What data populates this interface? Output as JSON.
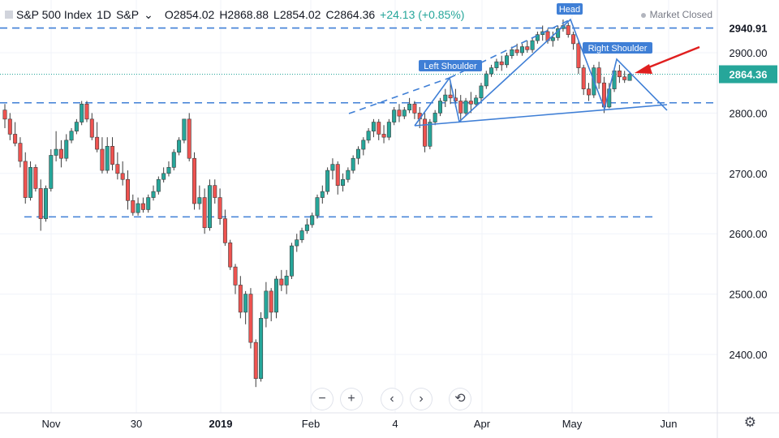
{
  "header": {
    "symbol": "S&P 500 Index",
    "interval": "1D",
    "exchange": "S&P",
    "open": "O2854.02",
    "high": "H2868.88",
    "low": "L2854.02",
    "close": "C2864.36",
    "change": "+24.13 (+0.85%)",
    "market_status": "Market Closed"
  },
  "colors": {
    "up": "#26a69a",
    "down": "#ef5350",
    "pattern": "#3f7fd6",
    "arrow": "#e01f1f"
  },
  "chart_data": {
    "type": "candlestick",
    "ylim": [
      2330,
      3000
    ],
    "y_ticks": [
      2400,
      2500,
      2600,
      2700,
      2800,
      2900
    ],
    "x_ticks": [
      "Nov",
      "30",
      "2019",
      "Feb",
      "4",
      "Apr",
      "May",
      "Jun"
    ],
    "last_price_label": "2864.36",
    "level_label": "2940.91",
    "levels": [
      2940.91,
      2817,
      2628
    ],
    "annotations": [
      "Left Shoulder",
      "Head",
      "Right Shoulder"
    ],
    "candles": [
      [
        2805,
        2815,
        2790,
        2775
      ],
      [
        2790,
        2800,
        2765,
        2755
      ],
      [
        2765,
        2785,
        2750,
        2745
      ],
      [
        2750,
        2760,
        2720,
        2710
      ],
      [
        2720,
        2735,
        2660,
        2650
      ],
      [
        2660,
        2720,
        2710,
        2655
      ],
      [
        2710,
        2715,
        2675,
        2670
      ],
      [
        2675,
        2690,
        2625,
        2605
      ],
      [
        2625,
        2680,
        2675,
        2620
      ],
      [
        2675,
        2740,
        2730,
        2670
      ],
      [
        2730,
        2770,
        2740,
        2720
      ],
      [
        2740,
        2755,
        2725,
        2710
      ],
      [
        2725,
        2765,
        2755,
        2720
      ],
      [
        2755,
        2775,
        2770,
        2750
      ],
      [
        2770,
        2790,
        2785,
        2765
      ],
      [
        2785,
        2820,
        2815,
        2780
      ],
      [
        2815,
        2820,
        2790,
        2785
      ],
      [
        2790,
        2800,
        2760,
        2755
      ],
      [
        2760,
        2785,
        2740,
        2735
      ],
      [
        2740,
        2760,
        2705,
        2700
      ],
      [
        2705,
        2760,
        2745,
        2700
      ],
      [
        2745,
        2760,
        2715,
        2705
      ],
      [
        2715,
        2735,
        2700,
        2690
      ],
      [
        2700,
        2720,
        2690,
        2680
      ],
      [
        2690,
        2705,
        2655,
        2640
      ],
      [
        2655,
        2665,
        2635,
        2630
      ],
      [
        2635,
        2660,
        2650,
        2630
      ],
      [
        2650,
        2660,
        2640,
        2635
      ],
      [
        2640,
        2665,
        2660,
        2635
      ],
      [
        2660,
        2680,
        2670,
        2655
      ],
      [
        2670,
        2695,
        2690,
        2665
      ],
      [
        2690,
        2710,
        2700,
        2685
      ],
      [
        2700,
        2720,
        2710,
        2695
      ],
      [
        2710,
        2740,
        2735,
        2705
      ],
      [
        2735,
        2760,
        2755,
        2730
      ],
      [
        2755,
        2790,
        2790,
        2750
      ],
      [
        2790,
        2800,
        2725,
        2720
      ],
      [
        2725,
        2735,
        2650,
        2640
      ],
      [
        2650,
        2680,
        2660,
        2640
      ],
      [
        2660,
        2675,
        2610,
        2600
      ],
      [
        2610,
        2690,
        2680,
        2605
      ],
      [
        2680,
        2690,
        2660,
        2650
      ],
      [
        2660,
        2675,
        2625,
        2615
      ],
      [
        2625,
        2640,
        2585,
        2580
      ],
      [
        2585,
        2590,
        2545,
        2540
      ],
      [
        2545,
        2550,
        2515,
        2500
      ],
      [
        2515,
        2530,
        2470,
        2460
      ],
      [
        2470,
        2505,
        2500,
        2450
      ],
      [
        2500,
        2510,
        2420,
        2410
      ],
      [
        2420,
        2425,
        2360,
        2346
      ],
      [
        2360,
        2470,
        2460,
        2355
      ],
      [
        2460,
        2520,
        2505,
        2445
      ],
      [
        2505,
        2510,
        2470,
        2455
      ],
      [
        2470,
        2530,
        2525,
        2460
      ],
      [
        2525,
        2540,
        2515,
        2505
      ],
      [
        2515,
        2540,
        2530,
        2500
      ],
      [
        2530,
        2585,
        2580,
        2525
      ],
      [
        2580,
        2600,
        2590,
        2570
      ],
      [
        2590,
        2610,
        2605,
        2585
      ],
      [
        2605,
        2625,
        2615,
        2600
      ],
      [
        2615,
        2635,
        2630,
        2610
      ],
      [
        2630,
        2665,
        2660,
        2625
      ],
      [
        2660,
        2680,
        2670,
        2650
      ],
      [
        2670,
        2710,
        2705,
        2665
      ],
      [
        2705,
        2725,
        2715,
        2690
      ],
      [
        2715,
        2720,
        2680,
        2665
      ],
      [
        2680,
        2700,
        2690,
        2670
      ],
      [
        2690,
        2710,
        2705,
        2685
      ],
      [
        2705,
        2730,
        2725,
        2700
      ],
      [
        2725,
        2745,
        2740,
        2715
      ],
      [
        2740,
        2760,
        2755,
        2730
      ],
      [
        2755,
        2775,
        2770,
        2750
      ],
      [
        2770,
        2790,
        2785,
        2760
      ],
      [
        2785,
        2790,
        2765,
        2755
      ],
      [
        2765,
        2780,
        2760,
        2750
      ],
      [
        2760,
        2790,
        2785,
        2755
      ],
      [
        2785,
        2810,
        2805,
        2780
      ],
      [
        2805,
        2815,
        2795,
        2785
      ],
      [
        2795,
        2810,
        2805,
        2790
      ],
      [
        2805,
        2825,
        2815,
        2800
      ],
      [
        2815,
        2820,
        2800,
        2790
      ],
      [
        2800,
        2810,
        2790,
        2775
      ],
      [
        2790,
        2800,
        2745,
        2735
      ],
      [
        2745,
        2790,
        2785,
        2740
      ],
      [
        2785,
        2805,
        2800,
        2780
      ],
      [
        2800,
        2825,
        2820,
        2795
      ],
      [
        2820,
        2840,
        2830,
        2810
      ],
      [
        2830,
        2850,
        2825,
        2815
      ],
      [
        2825,
        2840,
        2820,
        2810
      ],
      [
        2820,
        2830,
        2800,
        2785
      ],
      [
        2800,
        2825,
        2820,
        2795
      ],
      [
        2820,
        2835,
        2815,
        2800
      ],
      [
        2815,
        2830,
        2825,
        2810
      ],
      [
        2825,
        2850,
        2845,
        2820
      ],
      [
        2845,
        2870,
        2865,
        2840
      ],
      [
        2865,
        2880,
        2875,
        2860
      ],
      [
        2875,
        2890,
        2885,
        2870
      ],
      [
        2885,
        2895,
        2880,
        2870
      ],
      [
        2880,
        2900,
        2895,
        2875
      ],
      [
        2895,
        2910,
        2905,
        2890
      ],
      [
        2905,
        2915,
        2900,
        2895
      ],
      [
        2900,
        2915,
        2910,
        2895
      ],
      [
        2910,
        2920,
        2905,
        2900
      ],
      [
        2905,
        2925,
        2920,
        2900
      ],
      [
        2920,
        2935,
        2930,
        2915
      ],
      [
        2930,
        2945,
        2935,
        2920
      ],
      [
        2935,
        2940,
        2920,
        2915
      ],
      [
        2920,
        2935,
        2925,
        2910
      ],
      [
        2925,
        2945,
        2940,
        2920
      ],
      [
        2940,
        2955,
        2945,
        2935
      ],
      [
        2945,
        2950,
        2930,
        2925
      ],
      [
        2930,
        2935,
        2915,
        2905
      ],
      [
        2915,
        2920,
        2875,
        2865
      ],
      [
        2875,
        2880,
        2840,
        2830
      ],
      [
        2840,
        2850,
        2830,
        2820
      ],
      [
        2830,
        2880,
        2875,
        2825
      ],
      [
        2875,
        2885,
        2850,
        2840
      ],
      [
        2850,
        2860,
        2810,
        2800
      ],
      [
        2810,
        2850,
        2840,
        2808
      ],
      [
        2840,
        2875,
        2870,
        2835
      ],
      [
        2870,
        2880,
        2860,
        2850
      ],
      [
        2860,
        2870,
        2855,
        2850
      ],
      [
        2854.02,
        2868.88,
        2864.36,
        2854.02
      ]
    ]
  },
  "toolbar": {
    "zoom_out": "−",
    "zoom_in": "+",
    "scroll_left": "‹",
    "scroll_right": "›",
    "reset": "⟲"
  },
  "settings_icon": "gear-icon"
}
